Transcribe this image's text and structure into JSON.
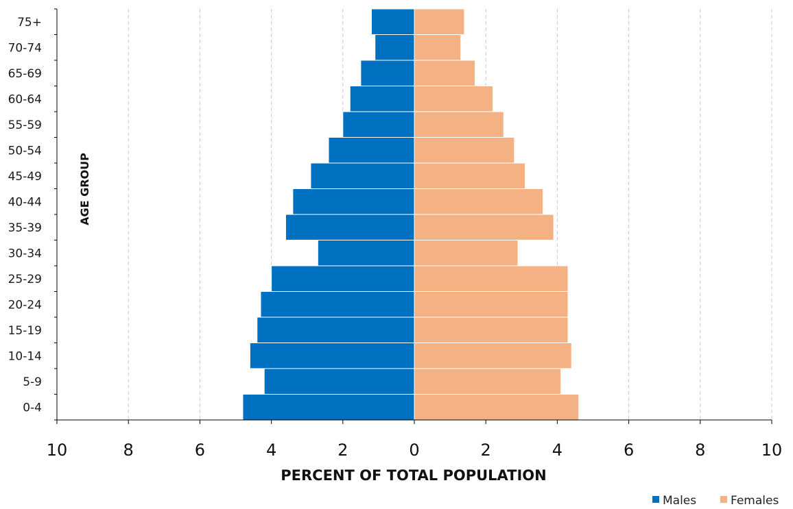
{
  "chart_data": {
    "type": "bar",
    "orientation": "horizontal-population-pyramid",
    "categories": [
      "0-4",
      "5-9",
      "10-14",
      "15-19",
      "20-24",
      "25-29",
      "30-34",
      "35-39",
      "40-44",
      "45-49",
      "50-54",
      "55-59",
      "60-64",
      "65-69",
      "70-74",
      "75+"
    ],
    "category_labels_visible": [
      "0-4",
      "5-9",
      "10-14",
      "15-19",
      "20-24",
      "25-29",
      "30-34",
      "35-39",
      "40-44",
      "45-49",
      "50-54",
      "55-59",
      "60-64",
      "65-69",
      "70-74",
      "75+"
    ],
    "series": [
      {
        "name": "Males",
        "color": "#0070C0",
        "values": [
          4.8,
          4.2,
          4.6,
          4.4,
          4.3,
          4.0,
          2.7,
          3.6,
          3.4,
          2.9,
          2.4,
          2.0,
          1.8,
          1.5,
          1.1,
          1.2
        ]
      },
      {
        "name": "Females",
        "color": "#F4B183",
        "values": [
          4.6,
          4.1,
          4.4,
          4.3,
          4.3,
          4.3,
          2.9,
          3.9,
          3.6,
          3.1,
          2.8,
          2.5,
          2.2,
          1.7,
          1.3,
          1.4
        ]
      }
    ],
    "xlim": [
      -10,
      10
    ],
    "x_tick_values": [
      -10,
      -8,
      -6,
      -4,
      -2,
      0,
      2,
      4,
      6,
      8,
      10
    ],
    "x_tick_labels": [
      "10",
      "8",
      "6",
      "4",
      "2",
      "0",
      "2",
      "4",
      "6",
      "8",
      "10"
    ],
    "xlabel": "PERCENT OF TOTAL POPULATION",
    "ylabel": "AGE GROUP",
    "grid": "vertical-dashed",
    "legend": {
      "position": "bottom-right",
      "entries": [
        "Males",
        "Females"
      ]
    }
  }
}
